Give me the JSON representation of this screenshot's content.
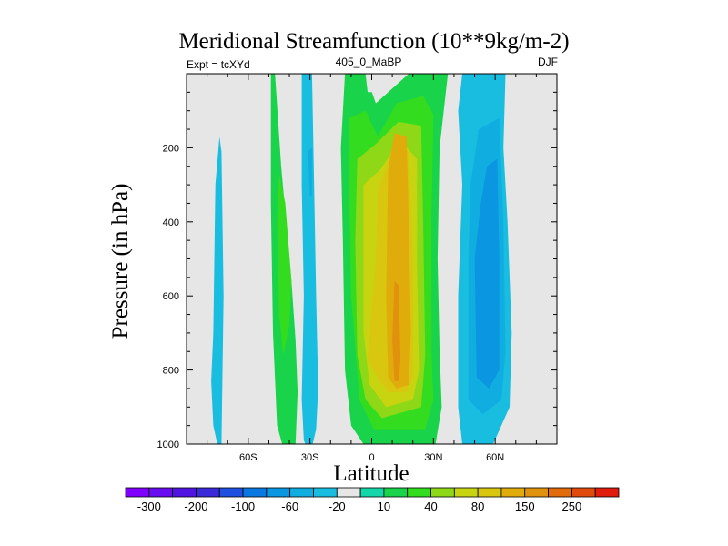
{
  "chart_data": {
    "type": "heatmap",
    "title": "Meridional Streamfunction (10**9kg/m-2)",
    "subtitle_left": "Expt = tcXYd",
    "subtitle_center": "405_0_MaBP",
    "subtitle_right": "DJF",
    "xlabel": "Latitude",
    "ylabel": "Pressure (in hPa)",
    "xlim": [
      -90,
      90
    ],
    "ylim": [
      1000,
      0
    ],
    "x_ticks": [
      {
        "value": -60,
        "label": "60S"
      },
      {
        "value": -30,
        "label": "30S"
      },
      {
        "value": 0,
        "label": "0"
      },
      {
        "value": 30,
        "label": "30N"
      },
      {
        "value": 60,
        "label": "60N"
      }
    ],
    "y_ticks": [
      {
        "value": 200,
        "label": "200"
      },
      {
        "value": 400,
        "label": "400"
      },
      {
        "value": 600,
        "label": "600"
      },
      {
        "value": 800,
        "label": "800"
      },
      {
        "value": 1000,
        "label": "1000"
      }
    ],
    "colorbar": {
      "colors": [
        "#7f00ff",
        "#6a0cf0",
        "#5015e0",
        "#3a2ad8",
        "#1f50e0",
        "#0a78e0",
        "#0a96e0",
        "#10aee0",
        "#19bde0",
        "#e6e6e6",
        "#14d6a8",
        "#19d34a",
        "#33dc1e",
        "#8ed817",
        "#c8d40f",
        "#d8c60f",
        "#e0ac0c",
        "#e0920c",
        "#e06c0c",
        "#e04a0c",
        "#e01c0c"
      ],
      "labels": [
        "-300",
        "-200",
        "-100",
        "-60",
        "-20",
        "10",
        "40",
        "80",
        "150",
        "250"
      ]
    },
    "regions": [
      {
        "color": "#19bde0",
        "points": [
          [
            -75,
            1000
          ],
          [
            -73,
            1000
          ],
          [
            -72,
            600
          ],
          [
            -73,
            210
          ],
          [
            -74,
            170
          ],
          [
            -76,
            300
          ],
          [
            -77,
            700
          ],
          [
            -78,
            830
          ],
          [
            -77,
            950
          ]
        ]
      },
      {
        "color": "#19d34a",
        "points": [
          [
            -49,
            0
          ],
          [
            -47,
            0
          ],
          [
            -44,
            250
          ],
          [
            -39,
            560
          ],
          [
            -37,
            720
          ],
          [
            -36,
            860
          ],
          [
            -37,
            1000
          ],
          [
            -43,
            1010
          ],
          [
            -46,
            950
          ],
          [
            -48,
            700
          ],
          [
            -49,
            350
          ]
        ]
      },
      {
        "color": "#33dc1e",
        "points": [
          [
            -45,
            270
          ],
          [
            -42,
            350
          ],
          [
            -39,
            560
          ],
          [
            -40,
            680
          ],
          [
            -43,
            760
          ],
          [
            -45,
            650
          ],
          [
            -46,
            400
          ]
        ]
      },
      {
        "color": "#19bde0",
        "points": [
          [
            -34,
            0
          ],
          [
            -29,
            0
          ],
          [
            -28,
            300
          ],
          [
            -27,
            600
          ],
          [
            -26,
            850
          ],
          [
            -27,
            960
          ],
          [
            -30,
            1030
          ],
          [
            -33,
            990
          ],
          [
            -34,
            880
          ],
          [
            -33,
            600
          ],
          [
            -34,
            300
          ]
        ]
      },
      {
        "color": "#10aee0",
        "points": [
          [
            -31,
            210
          ],
          [
            -29,
            200
          ],
          [
            -29,
            330
          ],
          [
            -30,
            330
          ]
        ]
      },
      {
        "color": "#19d34a",
        "points": [
          [
            -13,
            0
          ],
          [
            -3,
            0
          ],
          [
            2,
            80
          ],
          [
            6,
            60
          ],
          [
            18,
            0
          ],
          [
            37,
            0
          ],
          [
            33,
            200
          ],
          [
            32,
            500
          ],
          [
            33,
            750
          ],
          [
            34,
            900
          ],
          [
            31,
            1000
          ],
          [
            -4,
            1000
          ],
          [
            -10,
            950
          ],
          [
            -13,
            800
          ],
          [
            -14,
            450
          ],
          [
            -15,
            200
          ]
        ]
      },
      {
        "color": "#33dc1e",
        "points": [
          [
            -11,
            120
          ],
          [
            -3,
            100
          ],
          [
            3,
            170
          ],
          [
            12,
            80
          ],
          [
            25,
            60
          ],
          [
            30,
            110
          ],
          [
            29,
            400
          ],
          [
            29,
            750
          ],
          [
            30,
            880
          ],
          [
            26,
            960
          ],
          [
            1,
            960
          ],
          [
            -6,
            880
          ],
          [
            -10,
            600
          ],
          [
            -11,
            300
          ]
        ]
      },
      {
        "color": "#8ed817",
        "points": [
          [
            -7,
            230
          ],
          [
            2,
            190
          ],
          [
            13,
            130
          ],
          [
            24,
            140
          ],
          [
            25,
            400
          ],
          [
            26,
            760
          ],
          [
            24,
            900
          ],
          [
            5,
            930
          ],
          [
            -3,
            880
          ],
          [
            -7,
            760
          ],
          [
            -8,
            450
          ]
        ]
      },
      {
        "color": "#c8d40f",
        "points": [
          [
            -4,
            300
          ],
          [
            4,
            260
          ],
          [
            14,
            180
          ],
          [
            22,
            230
          ],
          [
            22,
            500
          ],
          [
            23,
            800
          ],
          [
            20,
            880
          ],
          [
            7,
            900
          ],
          [
            -1,
            840
          ],
          [
            -4,
            700
          ]
        ]
      },
      {
        "color": "#d8c60f",
        "points": [
          [
            3,
            320
          ],
          [
            10,
            200
          ],
          [
            18,
            210
          ],
          [
            20,
            500
          ],
          [
            20,
            820
          ],
          [
            17,
            860
          ],
          [
            8,
            860
          ],
          [
            3,
            820
          ],
          [
            -2,
            770
          ],
          [
            -1,
            700
          ],
          [
            2,
            500
          ]
        ]
      },
      {
        "color": "#e0ac0c",
        "points": [
          [
            8,
            260
          ],
          [
            11,
            160
          ],
          [
            17,
            170
          ],
          [
            18,
            400
          ],
          [
            19,
            700
          ],
          [
            18,
            840
          ],
          [
            12,
            850
          ],
          [
            8,
            820
          ],
          [
            7,
            600
          ]
        ]
      },
      {
        "color": "#e0920c",
        "points": [
          [
            11,
            560
          ],
          [
            13,
            570
          ],
          [
            14,
            770
          ],
          [
            13,
            830
          ],
          [
            11,
            830
          ],
          [
            10,
            720
          ]
        ]
      },
      {
        "color": "#19bde0",
        "points": [
          [
            44,
            0
          ],
          [
            65,
            0
          ],
          [
            64,
            200
          ],
          [
            66,
            400
          ],
          [
            68,
            700
          ],
          [
            67,
            900
          ],
          [
            59,
            1000
          ],
          [
            44,
            1000
          ],
          [
            42,
            900
          ],
          [
            42,
            600
          ],
          [
            44,
            300
          ],
          [
            42,
            100
          ]
        ]
      },
      {
        "color": "#10aee0",
        "points": [
          [
            52,
            150
          ],
          [
            62,
            120
          ],
          [
            64,
            400
          ],
          [
            65,
            750
          ],
          [
            63,
            880
          ],
          [
            54,
            920
          ],
          [
            47,
            880
          ],
          [
            47,
            500
          ],
          [
            48,
            300
          ]
        ]
      },
      {
        "color": "#0a96e0",
        "points": [
          [
            56,
            250
          ],
          [
            61,
            230
          ],
          [
            62,
            500
          ],
          [
            62,
            800
          ],
          [
            57,
            850
          ],
          [
            51,
            820
          ],
          [
            50,
            500
          ],
          [
            53,
            350
          ]
        ]
      }
    ],
    "blanks": [
      {
        "points": [
          [
            -3,
            0
          ],
          [
            1,
            0
          ],
          [
            1,
            50
          ],
          [
            -2,
            50
          ]
        ]
      }
    ]
  }
}
